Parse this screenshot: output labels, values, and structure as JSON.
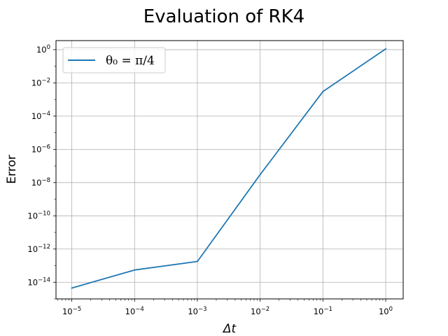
{
  "chart_data": {
    "type": "line",
    "title": "Evaluation of RK4",
    "xlabel": "Δt",
    "ylabel": "Error",
    "xscale": "log",
    "yscale": "log",
    "xlim": [
      5.6e-06,
      1.9
    ],
    "ylim": [
      1e-15,
      3.5
    ],
    "grid": true,
    "legend_position": "top-left",
    "x_ticks": [
      {
        "base": "10",
        "exp": "−5"
      },
      {
        "base": "10",
        "exp": "−4"
      },
      {
        "base": "10",
        "exp": "−3"
      },
      {
        "base": "10",
        "exp": "−2"
      },
      {
        "base": "10",
        "exp": "−1"
      },
      {
        "base": "10",
        "exp": "0"
      }
    ],
    "y_ticks": [
      {
        "base": "10",
        "exp": "−14"
      },
      {
        "base": "10",
        "exp": "−12"
      },
      {
        "base": "10",
        "exp": "−10"
      },
      {
        "base": "10",
        "exp": "−8"
      },
      {
        "base": "10",
        "exp": "−6"
      },
      {
        "base": "10",
        "exp": "−4"
      },
      {
        "base": "10",
        "exp": "−2"
      },
      {
        "base": "10",
        "exp": "0"
      }
    ],
    "series": [
      {
        "name": "θ₀ = π/4",
        "color": "#1f77b4",
        "x": [
          1e-05,
          0.0001,
          0.001,
          0.01,
          0.1,
          1
        ],
        "y": [
          4.5e-15,
          5.5e-14,
          1.8e-13,
          3e-08,
          0.003,
          1.1
        ]
      }
    ]
  }
}
